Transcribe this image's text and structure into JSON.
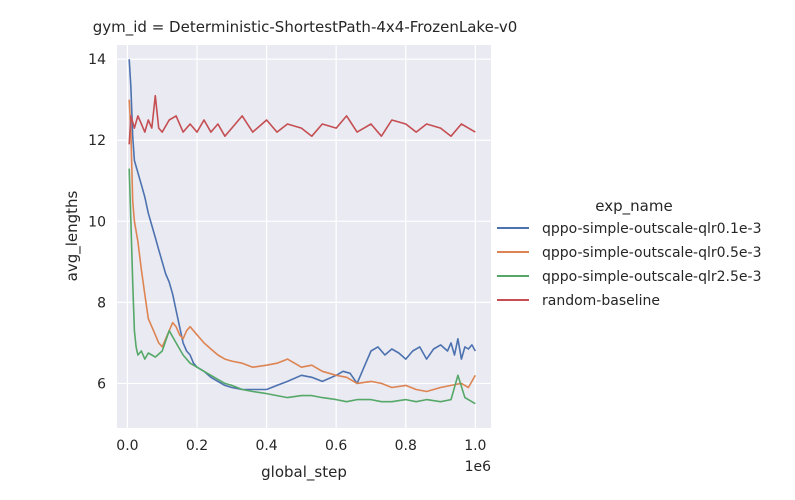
{
  "chart_data": {
    "type": "line",
    "title": "gym_id = Deterministic-ShortestPath-4x4-FrozenLake-v0",
    "xlabel": "global_step",
    "ylabel": "avg_lengths",
    "x_offset_label": "1e6",
    "xlim": [
      -0.03,
      1.045
    ],
    "ylim": [
      4.9,
      14.35
    ],
    "x_ticks": [
      0.0,
      0.2,
      0.4,
      0.6,
      0.8,
      1.0
    ],
    "x_tick_labels": [
      "0.0",
      "0.2",
      "0.4",
      "0.6",
      "0.8",
      "1.0"
    ],
    "y_ticks": [
      6,
      8,
      10,
      12,
      14
    ],
    "y_tick_labels": [
      "6",
      "8",
      "10",
      "12",
      "14"
    ],
    "grid": true,
    "legend": {
      "title": "exp_name",
      "position": "right-outside"
    },
    "series": [
      {
        "name": "qppo-simple-outscale-qlr0.1e-3",
        "color": "#4c72b0",
        "x": [
          0.005,
          0.01,
          0.015,
          0.02,
          0.03,
          0.04,
          0.05,
          0.06,
          0.07,
          0.08,
          0.09,
          0.1,
          0.11,
          0.12,
          0.13,
          0.14,
          0.15,
          0.16,
          0.17,
          0.18,
          0.19,
          0.2,
          0.22,
          0.24,
          0.26,
          0.28,
          0.3,
          0.33,
          0.36,
          0.4,
          0.43,
          0.46,
          0.5,
          0.53,
          0.56,
          0.6,
          0.62,
          0.64,
          0.66,
          0.68,
          0.7,
          0.72,
          0.74,
          0.76,
          0.78,
          0.8,
          0.82,
          0.84,
          0.86,
          0.88,
          0.9,
          0.92,
          0.93,
          0.94,
          0.95,
          0.96,
          0.97,
          0.98,
          0.99,
          1.0
        ],
        "y": [
          14.0,
          13.3,
          12.1,
          11.5,
          11.2,
          10.9,
          10.6,
          10.2,
          9.9,
          9.6,
          9.3,
          9.0,
          8.7,
          8.5,
          8.2,
          7.8,
          7.4,
          7.0,
          6.8,
          6.7,
          6.5,
          6.4,
          6.3,
          6.15,
          6.05,
          5.95,
          5.9,
          5.85,
          5.85,
          5.85,
          5.95,
          6.05,
          6.2,
          6.15,
          6.05,
          6.2,
          6.3,
          6.25,
          6.0,
          6.4,
          6.8,
          6.9,
          6.7,
          6.85,
          6.75,
          6.6,
          6.8,
          6.9,
          6.6,
          6.85,
          6.95,
          6.8,
          7.0,
          6.7,
          7.1,
          6.6,
          6.9,
          6.85,
          6.95,
          6.8
        ]
      },
      {
        "name": "qppo-simple-outscale-qlr0.5e-3",
        "color": "#dd8452",
        "x": [
          0.005,
          0.01,
          0.015,
          0.02,
          0.03,
          0.04,
          0.05,
          0.06,
          0.07,
          0.08,
          0.09,
          0.1,
          0.11,
          0.12,
          0.13,
          0.14,
          0.15,
          0.16,
          0.17,
          0.18,
          0.2,
          0.22,
          0.24,
          0.26,
          0.28,
          0.3,
          0.33,
          0.36,
          0.4,
          0.43,
          0.46,
          0.5,
          0.53,
          0.56,
          0.6,
          0.63,
          0.66,
          0.7,
          0.73,
          0.76,
          0.8,
          0.83,
          0.86,
          0.9,
          0.93,
          0.96,
          0.98,
          1.0
        ],
        "y": [
          13.0,
          12.2,
          10.5,
          10.0,
          9.5,
          8.8,
          8.2,
          7.6,
          7.4,
          7.2,
          7.0,
          6.9,
          7.1,
          7.3,
          7.5,
          7.4,
          7.2,
          7.1,
          7.3,
          7.4,
          7.2,
          7.0,
          6.85,
          6.7,
          6.6,
          6.55,
          6.5,
          6.4,
          6.45,
          6.5,
          6.6,
          6.4,
          6.45,
          6.3,
          6.2,
          6.15,
          6.0,
          6.05,
          6.0,
          5.9,
          5.95,
          5.85,
          5.8,
          5.9,
          5.95,
          6.0,
          5.9,
          6.2
        ]
      },
      {
        "name": "qppo-simple-outscale-qlr2.5e-3",
        "color": "#55a868",
        "x": [
          0.005,
          0.01,
          0.015,
          0.02,
          0.025,
          0.03,
          0.04,
          0.05,
          0.06,
          0.07,
          0.08,
          0.1,
          0.12,
          0.14,
          0.16,
          0.18,
          0.2,
          0.22,
          0.24,
          0.26,
          0.28,
          0.3,
          0.33,
          0.36,
          0.4,
          0.43,
          0.46,
          0.5,
          0.53,
          0.56,
          0.6,
          0.63,
          0.66,
          0.7,
          0.73,
          0.76,
          0.8,
          0.83,
          0.86,
          0.9,
          0.93,
          0.95,
          0.97,
          1.0
        ],
        "y": [
          11.3,
          10.0,
          8.5,
          7.3,
          6.9,
          6.7,
          6.8,
          6.6,
          6.75,
          6.7,
          6.65,
          6.8,
          7.3,
          7.0,
          6.7,
          6.5,
          6.4,
          6.3,
          6.2,
          6.1,
          6.0,
          5.95,
          5.85,
          5.8,
          5.75,
          5.7,
          5.65,
          5.7,
          5.7,
          5.65,
          5.6,
          5.55,
          5.6,
          5.6,
          5.55,
          5.55,
          5.6,
          5.55,
          5.6,
          5.55,
          5.6,
          6.2,
          5.65,
          5.5
        ]
      },
      {
        "name": "random-baseline",
        "color": "#c44e52",
        "x": [
          0.005,
          0.01,
          0.02,
          0.03,
          0.04,
          0.05,
          0.06,
          0.07,
          0.08,
          0.09,
          0.1,
          0.12,
          0.14,
          0.16,
          0.18,
          0.2,
          0.22,
          0.24,
          0.26,
          0.28,
          0.3,
          0.33,
          0.36,
          0.4,
          0.43,
          0.46,
          0.5,
          0.53,
          0.56,
          0.6,
          0.63,
          0.66,
          0.7,
          0.73,
          0.76,
          0.8,
          0.83,
          0.86,
          0.9,
          0.93,
          0.96,
          1.0
        ],
        "y": [
          11.9,
          12.6,
          12.3,
          12.6,
          12.4,
          12.2,
          12.5,
          12.3,
          13.1,
          12.3,
          12.2,
          12.5,
          12.6,
          12.2,
          12.4,
          12.2,
          12.5,
          12.2,
          12.4,
          12.1,
          12.3,
          12.6,
          12.2,
          12.5,
          12.2,
          12.4,
          12.3,
          12.1,
          12.4,
          12.3,
          12.6,
          12.2,
          12.4,
          12.1,
          12.5,
          12.4,
          12.2,
          12.4,
          12.3,
          12.1,
          12.4,
          12.2
        ]
      }
    ]
  }
}
